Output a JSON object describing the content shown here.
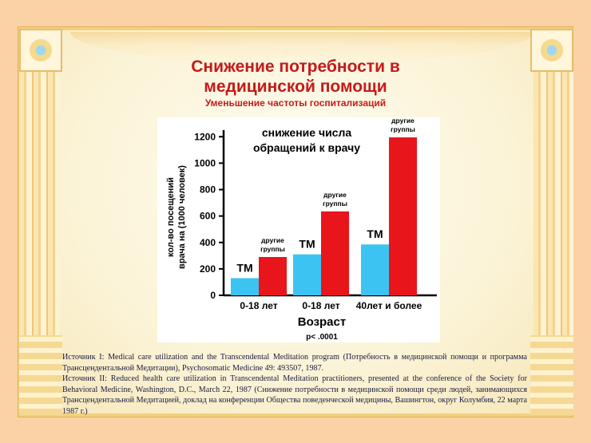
{
  "slide": {
    "title_line1": "Снижение потребности в",
    "title_line2": "медицинской помощи",
    "subtitle": "Уменьшение частоты госпитализаций"
  },
  "colors": {
    "title": "#c41a1a",
    "tm_bar": "#3cc3f2",
    "other_bar": "#e8151b"
  },
  "chart_data": {
    "type": "bar",
    "title": "снижение числа обращений к врачу",
    "xlabel": "Возраст",
    "ylabel": "кол-во посещений врача на (1000 человек)",
    "categories": [
      "0-18 лет",
      "0-18 лет",
      "40лет и более"
    ],
    "series": [
      {
        "name": "ТМ",
        "values": [
          130,
          310,
          385
        ]
      },
      {
        "name": "другие группы",
        "values": [
          290,
          635,
          1195
        ]
      }
    ],
    "ylim": [
      0,
      1250
    ],
    "yticks": [
      0,
      200,
      400,
      600,
      800,
      1000,
      1200
    ],
    "tm_label": "ТМ",
    "other_label_line1": "другие",
    "other_label_line2": "группы",
    "note": "p< .0001"
  },
  "sources": {
    "line1": "Источник I: Medical care utilization and the Transcendental Meditation program (Потребность в медицинской помощи и программа Трансцендентальной Медитации), Psychosomatic Medicine 49: 493507, 1987.",
    "line2": "Источник II: Reduced health care utilization in Transcendental Meditation practitioners, presented at the conference of the Society for Behavioral Medicine, Washington, D.C., March 22, 1987 (Снижение потребности в медицинской помощи среди людей, занимающихся Трансцендентальной Медитацией, доклад на конференции Общества поведенческой медицины, Вашингтон, округ Колумбия, 22 марта 1987 г.)"
  }
}
